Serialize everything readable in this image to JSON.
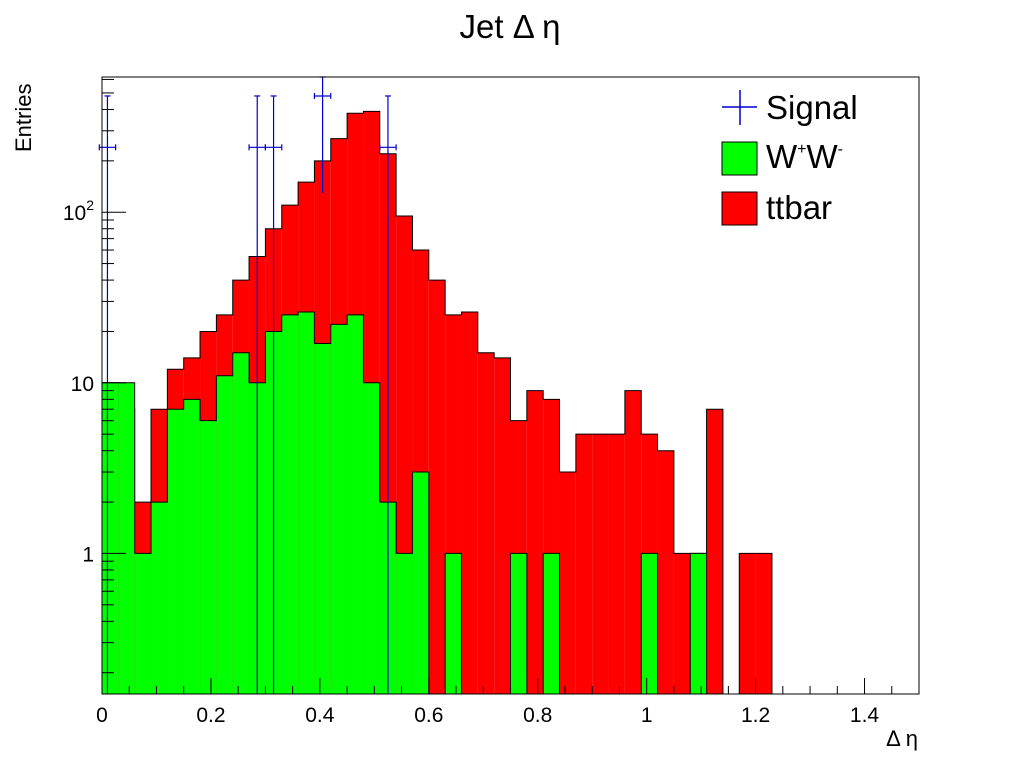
{
  "chart_data": {
    "type": "histogram",
    "title": "Jet Δ η",
    "xlabel": "Δ η",
    "ylabel": "Entries",
    "xlim": [
      0,
      1.5
    ],
    "ylim": [
      0.15,
      620
    ],
    "log_y": true,
    "grid": false,
    "legend_position": "top-right",
    "x_ticks": [
      {
        "value": 0,
        "label": "0"
      },
      {
        "value": 0.2,
        "label": "0.2"
      },
      {
        "value": 0.4,
        "label": "0.4"
      },
      {
        "value": 0.6,
        "label": "0.6"
      },
      {
        "value": 0.8,
        "label": "0.8"
      },
      {
        "value": 1.0,
        "label": "1"
      },
      {
        "value": 1.2,
        "label": "1.2"
      },
      {
        "value": 1.4,
        "label": "1.4"
      }
    ],
    "y_ticks": [
      {
        "value": 1,
        "base": "1",
        "exp": ""
      },
      {
        "value": 10,
        "base": "10",
        "exp": ""
      },
      {
        "value": 100,
        "base": "10",
        "exp": "2"
      }
    ],
    "bin_width": 0.03,
    "series": [
      {
        "name": "ttbar",
        "kind": "stacked-total",
        "color": "#ff0000",
        "values": [
          10,
          7,
          2,
          7,
          12,
          14,
          20,
          25,
          40,
          55,
          80,
          110,
          150,
          200,
          270,
          380,
          390,
          220,
          95,
          60,
          40,
          25,
          26,
          15,
          14,
          6,
          9,
          8,
          3,
          5,
          5,
          5,
          9,
          5,
          4,
          1,
          1,
          7,
          0,
          1,
          1,
          0,
          0,
          0,
          0,
          0,
          0,
          0,
          0,
          0,
          0
        ]
      },
      {
        "name": "W⁺W⁻",
        "legend_label": {
          "base1": "W",
          "sup1": "+",
          "base2": "W",
          "sup2": "-"
        },
        "kind": "stacked",
        "color": "#00ff00",
        "values": [
          10,
          10,
          1,
          2,
          7,
          8,
          6,
          11,
          15,
          10,
          20,
          25,
          26,
          17,
          22,
          25,
          10,
          2,
          1,
          3,
          0,
          1,
          0,
          0,
          0,
          1,
          0,
          1,
          0,
          0,
          0,
          0,
          0,
          1,
          0,
          0,
          1,
          0,
          0,
          0,
          0,
          0,
          0,
          0,
          0,
          0,
          0,
          0,
          0,
          0,
          0
        ]
      },
      {
        "name": "Signal",
        "kind": "points-with-errors",
        "color": "#0000cc",
        "points": [
          {
            "x": 0.01,
            "y": 240,
            "ylow": 1e-09,
            "yhigh": 480
          },
          {
            "x": 0.285,
            "y": 240,
            "ylow": 1e-09,
            "yhigh": 480
          },
          {
            "x": 0.315,
            "y": 240,
            "ylow": 1e-09,
            "yhigh": 480
          },
          {
            "x": 0.405,
            "y": 480,
            "ylow": 130,
            "yhigh": 620
          },
          {
            "x": 0.525,
            "y": 240,
            "ylow": 1e-09,
            "yhigh": 480
          }
        ]
      }
    ],
    "legend": [
      {
        "series": "Signal",
        "label": "Signal"
      },
      {
        "series": "W⁺W⁻",
        "label": "W⁺W⁻"
      },
      {
        "series": "ttbar",
        "label": "ttbar"
      }
    ]
  }
}
